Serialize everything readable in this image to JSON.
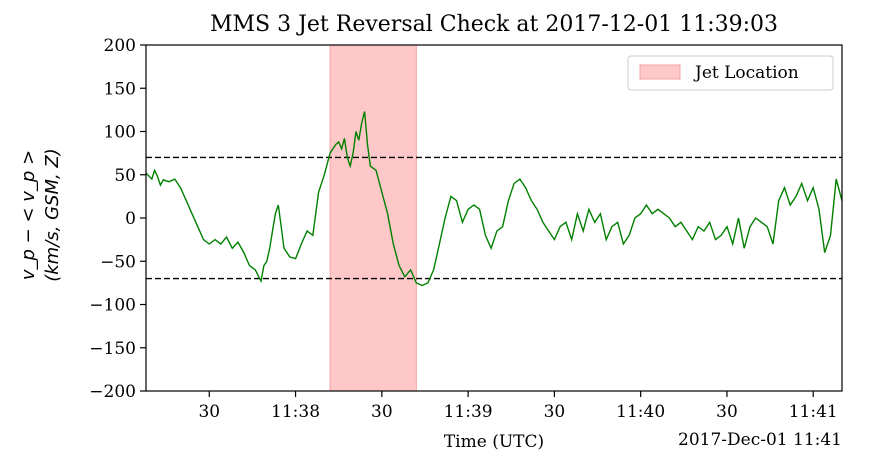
{
  "chart_data": {
    "type": "line",
    "title": "MMS 3 Jet Reversal Check at 2017-12-01 11:39:03",
    "xlabel": "Time (UTC)",
    "ylabel_line1": "v_p − < v_p >",
    "ylabel_line2": "(km/s, GSM, Z)",
    "ylim": [
      -200,
      200
    ],
    "yticks": [
      200,
      150,
      100,
      50,
      0,
      -50,
      -100,
      -150,
      -200
    ],
    "xlim": [
      "2017-12-01 11:37:08",
      "2017-12-01 11:41:10"
    ],
    "xtick_times": [
      "11:37:30",
      "11:38:00",
      "11:38:30",
      "11:39:00",
      "11:39:30",
      "11:40:00",
      "11:40:30",
      "11:41:00"
    ],
    "xtick_labels": [
      "30",
      "11:38",
      "30",
      "11:39",
      "30",
      "11:40",
      "30",
      "11:41"
    ],
    "x_offset_label": "2017-Dec-01 11:41",
    "grid": false,
    "legend_position": "top-right",
    "jet_span": {
      "name": "Jet Location",
      "start": "2017-12-01 11:38:12",
      "end": "2017-12-01 11:38:42",
      "color": "#ffc8c8",
      "edge": "#f4a3a3"
    },
    "thresholds": [
      70,
      -70
    ],
    "series": [
      {
        "color": "#008000",
        "x": [
          "11:37:08",
          "11:37:10",
          "11:37:11",
          "11:37:12",
          "11:37:13",
          "11:37:14",
          "11:37:16",
          "11:37:18",
          "11:37:20",
          "11:37:22",
          "11:37:24",
          "11:37:26",
          "11:37:28",
          "11:37:30",
          "11:37:32",
          "11:37:34",
          "11:37:36",
          "11:37:38",
          "11:37:40",
          "11:37:42",
          "11:37:44",
          "11:37:46",
          "11:37:48",
          "11:37:49",
          "11:37:50",
          "11:37:51",
          "11:37:52",
          "11:37:53",
          "11:37:54",
          "11:37:55",
          "11:37:56",
          "11:37:58",
          "11:38:00",
          "11:38:02",
          "11:38:04",
          "11:38:06",
          "11:38:08",
          "11:38:10",
          "11:38:12",
          "11:38:14",
          "11:38:15",
          "11:38:16",
          "11:38:17",
          "11:38:18",
          "11:38:19",
          "11:38:20",
          "11:38:21",
          "11:38:22",
          "11:38:23",
          "11:38:24",
          "11:38:25",
          "11:38:26",
          "11:38:28",
          "11:38:30",
          "11:38:32",
          "11:38:34",
          "11:38:36",
          "11:38:38",
          "11:38:40",
          "11:38:42",
          "11:38:44",
          "11:38:46",
          "11:38:48",
          "11:38:50",
          "11:38:52",
          "11:38:54",
          "11:38:56",
          "11:38:58",
          "11:39:00",
          "11:39:02",
          "11:39:04",
          "11:39:06",
          "11:39:08",
          "11:39:10",
          "11:39:12",
          "11:39:14",
          "11:39:16",
          "11:39:18",
          "11:39:20",
          "11:39:22",
          "11:39:24",
          "11:39:26",
          "11:39:28",
          "11:39:30",
          "11:39:32",
          "11:39:34",
          "11:39:36",
          "11:39:38",
          "11:39:40",
          "11:39:42",
          "11:39:44",
          "11:39:46",
          "11:39:48",
          "11:39:50",
          "11:39:52",
          "11:39:54",
          "11:39:56",
          "11:39:58",
          "11:40:00",
          "11:40:02",
          "11:40:04",
          "11:40:06",
          "11:40:08",
          "11:40:10",
          "11:40:12",
          "11:40:14",
          "11:40:16",
          "11:40:18",
          "11:40:20",
          "11:40:22",
          "11:40:24",
          "11:40:26",
          "11:40:28",
          "11:40:30",
          "11:40:32",
          "11:40:34",
          "11:40:36",
          "11:40:38",
          "11:40:40",
          "11:40:42",
          "11:40:44",
          "11:40:46",
          "11:40:48",
          "11:40:50",
          "11:40:52",
          "11:40:54",
          "11:40:56",
          "11:40:58",
          "11:41:00",
          "11:41:02",
          "11:41:04",
          "11:41:06",
          "11:41:08",
          "11:41:10"
        ],
        "y": [
          52,
          45,
          55,
          48,
          38,
          44,
          42,
          45,
          35,
          20,
          5,
          -10,
          -25,
          -30,
          -25,
          -30,
          -22,
          -35,
          -28,
          -40,
          -55,
          -60,
          -73,
          -55,
          -50,
          -35,
          -15,
          5,
          15,
          -10,
          -35,
          -45,
          -47,
          -30,
          -15,
          -20,
          30,
          50,
          75,
          85,
          88,
          80,
          92,
          70,
          60,
          75,
          100,
          90,
          110,
          123,
          85,
          60,
          55,
          30,
          5,
          -30,
          -55,
          -68,
          -60,
          -75,
          -78,
          -75,
          -60,
          -30,
          0,
          25,
          20,
          -5,
          10,
          15,
          10,
          -20,
          -35,
          -15,
          -10,
          20,
          40,
          45,
          35,
          20,
          10,
          -5,
          -15,
          -25,
          -10,
          -5,
          -25,
          5,
          -15,
          10,
          -5,
          5,
          -25,
          -10,
          -5,
          -30,
          -20,
          0,
          5,
          15,
          5,
          10,
          5,
          0,
          -10,
          -5,
          -15,
          -25,
          -10,
          -15,
          -5,
          -25,
          -20,
          -10,
          -30,
          0,
          -35,
          -10,
          0,
          -5,
          -10,
          -30,
          20,
          35,
          15,
          25,
          40,
          20,
          35,
          10,
          -40,
          -20,
          45,
          20
        ]
      }
    ]
  }
}
